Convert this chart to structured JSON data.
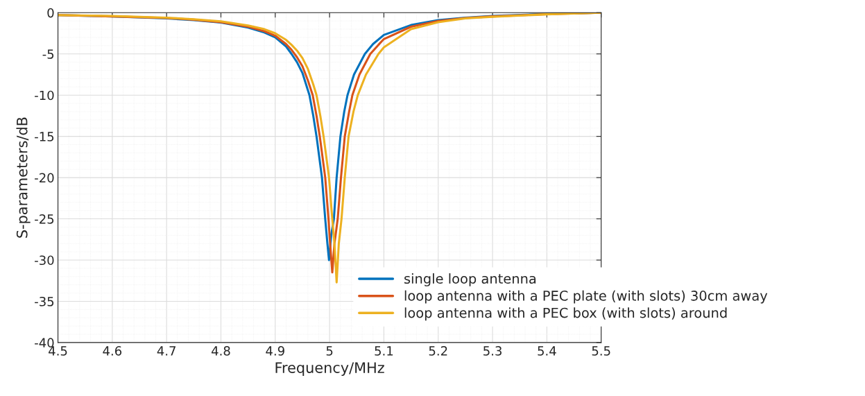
{
  "chart_data": {
    "type": "line",
    "xlabel": "Frequency/MHz",
    "ylabel": "S-parameters/dB",
    "xlim": [
      4.5,
      5.5
    ],
    "xticks": [
      4.5,
      4.6,
      4.7,
      4.8,
      4.9,
      5,
      5.1,
      5.2,
      5.3,
      5.4,
      5.5
    ],
    "ylim": [
      -40,
      0
    ],
    "yticks": [
      -40,
      -35,
      -30,
      -25,
      -20,
      -15,
      -10,
      -5,
      0
    ],
    "grid": true,
    "legend": "bottom right",
    "line_style": "solid",
    "series": [
      {
        "name": "single loop antenna",
        "color": "#0072bd",
        "x": [
          4.5,
          4.6,
          4.7,
          4.75,
          4.8,
          4.85,
          4.88,
          4.9,
          4.92,
          4.93,
          4.94,
          4.95,
          4.963,
          4.97,
          4.976,
          4.982,
          4.986,
          4.992,
          4.996,
          4.999,
          5.003,
          5.008,
          5.013,
          5.02,
          5.027,
          5.033,
          5.045,
          5.065,
          5.08,
          5.1,
          5.15,
          5.2,
          5.25,
          5.3,
          5.4,
          5.5
        ],
        "values": [
          -0.3,
          -0.45,
          -0.7,
          -0.9,
          -1.2,
          -1.8,
          -2.4,
          -3.0,
          -4.1,
          -5.0,
          -6.0,
          -7.3,
          -10,
          -12.5,
          -15,
          -18,
          -20,
          -25,
          -28,
          -30,
          -27,
          -25,
          -20,
          -15,
          -12,
          -10,
          -7.5,
          -5,
          -3.8,
          -2.7,
          -1.5,
          -0.9,
          -0.6,
          -0.4,
          -0.15,
          0
        ]
      },
      {
        "name": "loop antenna with a PEC plate (with slots) 30cm away",
        "color": "#d95319",
        "x": [
          4.5,
          4.6,
          4.7,
          4.75,
          4.8,
          4.85,
          4.88,
          4.9,
          4.92,
          4.93,
          4.94,
          4.95,
          4.96,
          4.969,
          4.976,
          4.982,
          4.988,
          4.992,
          4.998,
          5.001,
          5.005,
          5.009,
          5.015,
          5.021,
          5.028,
          5.036,
          5.042,
          5.055,
          5.075,
          5.09,
          5.1,
          5.15,
          5.2,
          5.25,
          5.3,
          5.4,
          5.5
        ],
        "values": [
          -0.3,
          -0.45,
          -0.65,
          -0.85,
          -1.15,
          -1.7,
          -2.25,
          -2.8,
          -3.8,
          -4.5,
          -5.4,
          -6.5,
          -8.2,
          -10,
          -12.5,
          -15,
          -18,
          -20,
          -25,
          -28,
          -31.5,
          -28,
          -25,
          -20,
          -15,
          -12,
          -10,
          -7.5,
          -5,
          -3.9,
          -3.2,
          -1.7,
          -1.0,
          -0.65,
          -0.45,
          -0.18,
          0
        ]
      },
      {
        "name": "loop antenna with a PEC box (with slots) around",
        "color": "#edb120",
        "x": [
          4.5,
          4.6,
          4.7,
          4.75,
          4.8,
          4.85,
          4.88,
          4.9,
          4.92,
          4.93,
          4.94,
          4.95,
          4.96,
          4.97,
          4.976,
          4.983,
          4.989,
          4.995,
          4.999,
          5.005,
          5.009,
          5.013,
          5.017,
          5.022,
          5.028,
          5.035,
          5.044,
          5.052,
          5.067,
          5.09,
          5.1,
          5.15,
          5.2,
          5.25,
          5.3,
          5.4,
          5.5
        ],
        "values": [
          -0.3,
          -0.4,
          -0.6,
          -0.8,
          -1.05,
          -1.55,
          -2.0,
          -2.5,
          -3.3,
          -3.9,
          -4.6,
          -5.5,
          -6.8,
          -8.7,
          -10,
          -12.5,
          -15,
          -18,
          -20,
          -25,
          -28,
          -32.7,
          -28,
          -25,
          -20,
          -15,
          -12,
          -10,
          -7.5,
          -5,
          -4.2,
          -2.0,
          -1.15,
          -0.7,
          -0.5,
          -0.2,
          0
        ]
      }
    ]
  }
}
